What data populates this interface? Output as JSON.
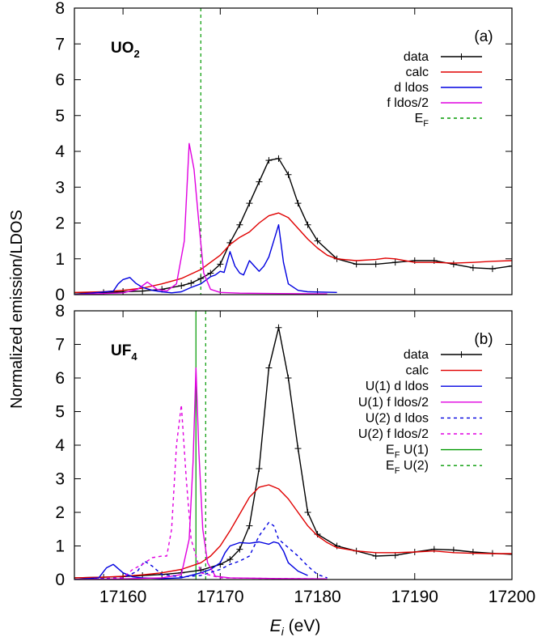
{
  "figure": {
    "ylabel": "Normalized emission/LDOS",
    "xlabel": {
      "main": "E",
      "sub": "i",
      "unit": " (eV)"
    }
  },
  "colors": {
    "data": "#000000",
    "calc": "#e00000",
    "d_ldos": "#0000e0",
    "f_ldos": "#e000e0",
    "ef_u1": "#009900",
    "ef_u2": "#009900"
  },
  "chart_data": [
    {
      "type": "line",
      "panel": "(a)",
      "compound": {
        "main": "UO",
        "sub": "2"
      },
      "xlim": [
        17155,
        17200
      ],
      "ylim": [
        0,
        8
      ],
      "yticks": [
        0,
        1,
        2,
        3,
        4,
        5,
        6,
        7,
        8
      ],
      "xticks": [
        17160,
        17170,
        17180,
        17190,
        17200
      ],
      "grid": false,
      "legend_position": "top-right",
      "legend": [
        {
          "label": "data",
          "sub": "",
          "series": "data"
        },
        {
          "label": "calc",
          "sub": "",
          "series": "calc"
        },
        {
          "label": "d ldos",
          "sub": "",
          "series": "d_ldos"
        },
        {
          "label": "f ldos/2",
          "sub": "",
          "series": "f_ldos"
        },
        {
          "label": "E",
          "sub": "F",
          "series": "ef"
        }
      ],
      "series": [
        {
          "key": "data",
          "name": "data",
          "color": "#000000",
          "dash": "",
          "markers": true,
          "x": [
            17155,
            17158,
            17160,
            17162,
            17164,
            17166,
            17167,
            17168,
            17169,
            17170,
            17171,
            17172,
            17173,
            17174,
            17175,
            17176,
            17177,
            17178,
            17179,
            17180,
            17182,
            17184,
            17186,
            17188,
            17190,
            17192,
            17194,
            17196,
            17198,
            17200
          ],
          "y": [
            0.05,
            0.06,
            0.08,
            0.1,
            0.15,
            0.25,
            0.32,
            0.45,
            0.6,
            0.85,
            1.45,
            1.95,
            2.55,
            3.15,
            3.75,
            3.8,
            3.35,
            2.55,
            1.95,
            1.5,
            1.0,
            0.85,
            0.85,
            0.9,
            0.95,
            0.95,
            0.85,
            0.75,
            0.72,
            0.8
          ]
        },
        {
          "key": "calc",
          "name": "calc",
          "color": "#e00000",
          "dash": "",
          "markers": false,
          "x": [
            17155,
            17158,
            17160,
            17162,
            17164,
            17166,
            17168,
            17170,
            17171,
            17172,
            17173,
            17174,
            17175,
            17176,
            17177,
            17178,
            17179,
            17180,
            17181,
            17182,
            17184,
            17186,
            17187,
            17188,
            17190,
            17192,
            17194,
            17196,
            17198,
            17200
          ],
          "y": [
            0.06,
            0.08,
            0.12,
            0.18,
            0.3,
            0.45,
            0.7,
            1.1,
            1.4,
            1.6,
            1.75,
            2.0,
            2.2,
            2.28,
            2.15,
            1.85,
            1.55,
            1.3,
            1.1,
            1.0,
            0.95,
            0.98,
            1.02,
            1.0,
            0.9,
            0.9,
            0.88,
            0.9,
            0.93,
            0.95
          ]
        },
        {
          "key": "d_ldos",
          "name": "d ldos",
          "color": "#0000e0",
          "dash": "",
          "markers": false,
          "x": [
            17155,
            17159,
            17159.5,
            17160,
            17160.7,
            17161.3,
            17162,
            17163,
            17164,
            17165,
            17166,
            17167,
            17168,
            17169,
            17169.5,
            17170,
            17170.4,
            17171,
            17171.5,
            17172,
            17172.4,
            17173,
            17173.5,
            17174,
            17174.5,
            17175,
            17175.5,
            17176,
            17176.5,
            17177,
            17178,
            17179,
            17182
          ],
          "y": [
            0.0,
            0.1,
            0.3,
            0.42,
            0.48,
            0.32,
            0.2,
            0.12,
            0.08,
            0.05,
            0.08,
            0.2,
            0.3,
            0.5,
            0.55,
            0.65,
            0.62,
            1.2,
            0.8,
            0.6,
            0.55,
            0.95,
            0.8,
            0.65,
            0.8,
            1.05,
            1.5,
            1.95,
            0.9,
            0.3,
            0.12,
            0.08,
            0.06
          ]
        },
        {
          "key": "f_ldos",
          "name": "f ldos/2",
          "color": "#e000e0",
          "dash": "",
          "markers": false,
          "x": [
            17155,
            17160,
            17161.5,
            17162.5,
            17163.5,
            17164.5,
            17165.5,
            17166.3,
            17166.8,
            17167.3,
            17167.8,
            17168.3,
            17169,
            17170,
            17172,
            17176,
            17181
          ],
          "y": [
            0.0,
            0.05,
            0.15,
            0.35,
            0.15,
            0.1,
            0.3,
            1.5,
            4.22,
            3.5,
            2.0,
            0.6,
            0.15,
            0.06,
            0.04,
            0.03,
            0.02
          ]
        }
      ],
      "ef_lines": [
        {
          "key": "ef",
          "x": 17168,
          "color": "#009900",
          "dash": "4,4"
        }
      ]
    },
    {
      "type": "line",
      "panel": "(b)",
      "compound": {
        "main": "UF",
        "sub": "4"
      },
      "xlim": [
        17155,
        17200
      ],
      "ylim": [
        0,
        8
      ],
      "yticks": [
        0,
        1,
        2,
        3,
        4,
        5,
        6,
        7,
        8
      ],
      "xticks": [
        17160,
        17170,
        17180,
        17190,
        17200
      ],
      "grid": false,
      "legend_position": "top-right",
      "legend": [
        {
          "label": "data",
          "sub": "",
          "series": "data"
        },
        {
          "label": "calc",
          "sub": "",
          "series": "calc"
        },
        {
          "label": "U(1) d ldos",
          "sub": "",
          "series": "d1"
        },
        {
          "label": "U(1) f ldos/2",
          "sub": "",
          "series": "f1"
        },
        {
          "label": "U(2) d ldos",
          "sub": "",
          "series": "d2"
        },
        {
          "label": "U(2) f ldos/2",
          "sub": "",
          "series": "f2"
        },
        {
          "label": "E",
          "sub": "F",
          "suffix": " U(1)",
          "series": "ef1"
        },
        {
          "label": "E",
          "sub": "F",
          "suffix": " U(2)",
          "series": "ef2"
        }
      ],
      "series": [
        {
          "key": "data",
          "name": "data",
          "color": "#000000",
          "dash": "",
          "markers": true,
          "x": [
            17155,
            17158,
            17160,
            17162,
            17164,
            17166,
            17168,
            17170,
            17171,
            17172,
            17173,
            17174,
            17175,
            17176,
            17177,
            17178,
            17179,
            17180,
            17182,
            17184,
            17186,
            17188,
            17190,
            17192,
            17194,
            17196,
            17198,
            17200
          ],
          "y": [
            0.05,
            0.07,
            0.09,
            0.12,
            0.15,
            0.2,
            0.28,
            0.45,
            0.6,
            0.9,
            1.6,
            3.3,
            6.3,
            7.5,
            6.0,
            3.9,
            2.0,
            1.35,
            1.0,
            0.85,
            0.7,
            0.72,
            0.82,
            0.9,
            0.88,
            0.82,
            0.78,
            0.75
          ]
        },
        {
          "key": "calc",
          "name": "calc",
          "color": "#e00000",
          "dash": "",
          "markers": false,
          "x": [
            17155,
            17158,
            17160,
            17162,
            17164,
            17166,
            17168,
            17169,
            17170,
            17171,
            17172,
            17173,
            17174,
            17175,
            17176,
            17177,
            17178,
            17179,
            17180,
            17181,
            17182,
            17184,
            17186,
            17188,
            17190,
            17192,
            17194,
            17196,
            17198,
            17200
          ],
          "y": [
            0.05,
            0.07,
            0.1,
            0.14,
            0.2,
            0.3,
            0.5,
            0.7,
            1.0,
            1.45,
            1.95,
            2.45,
            2.75,
            2.82,
            2.7,
            2.4,
            2.0,
            1.6,
            1.3,
            1.1,
            0.95,
            0.85,
            0.8,
            0.8,
            0.82,
            0.85,
            0.8,
            0.78,
            0.77,
            0.77
          ]
        },
        {
          "key": "d1",
          "name": "U(1) d ldos",
          "color": "#0000e0",
          "dash": "",
          "markers": false,
          "x": [
            17155,
            17157.5,
            17158.3,
            17159,
            17160,
            17161,
            17162,
            17164,
            17166,
            17168,
            17169,
            17170,
            17170.5,
            17171,
            17172,
            17173,
            17174,
            17175,
            17175.5,
            17176,
            17176.5,
            17177,
            17178,
            17179
          ],
          "y": [
            0.0,
            0.05,
            0.35,
            0.45,
            0.2,
            0.08,
            0.05,
            0.03,
            0.05,
            0.2,
            0.3,
            0.5,
            0.8,
            1.0,
            1.1,
            1.08,
            1.12,
            1.05,
            1.12,
            1.08,
            0.85,
            0.5,
            0.25,
            0.12
          ]
        },
        {
          "key": "f1",
          "name": "U(1) f ldos/2",
          "color": "#e000e0",
          "dash": "",
          "markers": false,
          "x": [
            17155,
            17160,
            17164,
            17166,
            17166.8,
            17167.2,
            17167.5,
            17167.8,
            17168.2,
            17168.7,
            17169.5,
            17171,
            17176,
            17181
          ],
          "y": [
            0.0,
            0.02,
            0.05,
            0.15,
            1.2,
            3.5,
            6.3,
            3.8,
            1.5,
            0.5,
            0.1,
            0.05,
            0.03,
            0.02
          ]
        },
        {
          "key": "d2",
          "name": "U(2) d ldos",
          "color": "#0000e0",
          "dash": "4,4",
          "markers": false,
          "x": [
            17155,
            17160,
            17161.5,
            17162.2,
            17163,
            17164,
            17166,
            17168,
            17170,
            17171,
            17172,
            17173,
            17174,
            17175,
            17175.5,
            17176,
            17177,
            17178,
            17179,
            17180,
            17181
          ],
          "y": [
            0.0,
            0.05,
            0.25,
            0.55,
            0.4,
            0.15,
            0.08,
            0.12,
            0.3,
            0.45,
            0.55,
            0.7,
            1.3,
            1.7,
            1.6,
            1.2,
            0.95,
            0.7,
            0.4,
            0.15,
            0.05
          ]
        },
        {
          "key": "f2",
          "name": "U(2) f ldos/2",
          "color": "#e000e0",
          "dash": "4,4",
          "markers": false,
          "x": [
            17155,
            17158,
            17160,
            17161,
            17162,
            17163,
            17164,
            17164.5,
            17165,
            17165.5,
            17166,
            17166.5,
            17167,
            17168,
            17170,
            17176,
            17181
          ],
          "y": [
            0.0,
            0.02,
            0.05,
            0.3,
            0.45,
            0.65,
            0.7,
            0.7,
            1.5,
            4.0,
            5.2,
            3.0,
            1.2,
            0.2,
            0.05,
            0.03,
            0.02
          ]
        }
      ],
      "ef_lines": [
        {
          "key": "ef1",
          "x": 17167.5,
          "color": "#009900",
          "dash": ""
        },
        {
          "key": "ef2",
          "x": 17168.5,
          "color": "#009900",
          "dash": "4,4"
        }
      ]
    }
  ]
}
